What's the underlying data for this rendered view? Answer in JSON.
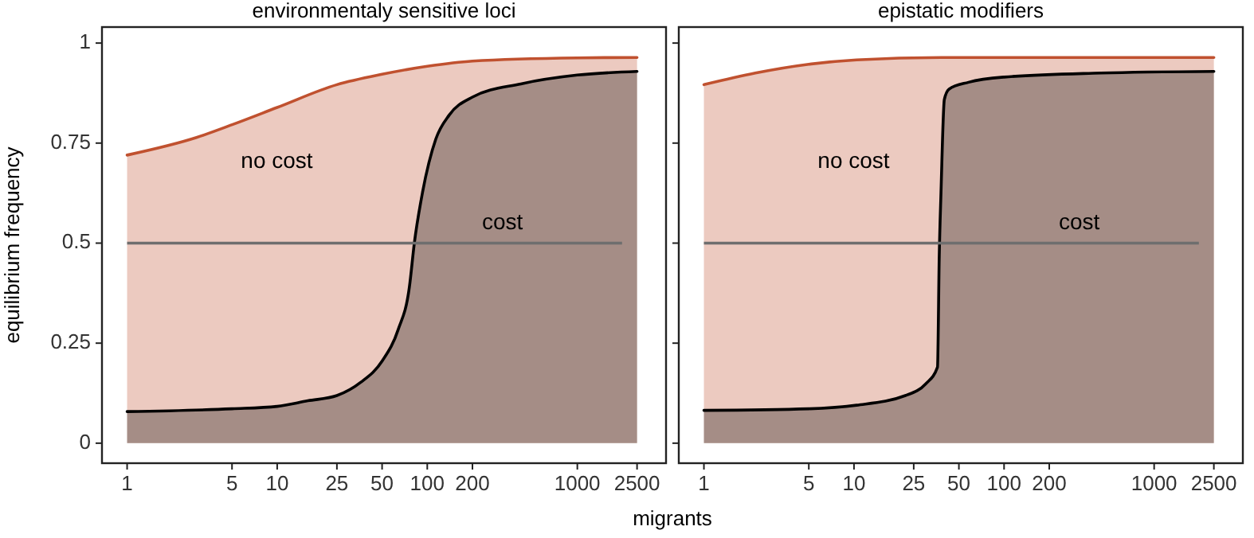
{
  "chart_data": [
    {
      "type": "area",
      "title": "environmentaly sensitive loci",
      "xlabel": "migrants",
      "ylabel": "equilibrium frequency",
      "log": "x",
      "xlim": [
        0.68,
        3900
      ],
      "xticks": [
        1,
        5,
        10,
        25,
        50,
        100,
        200,
        1000,
        2500
      ],
      "ylim": [
        -0.05,
        1.04
      ],
      "yticks": [
        0,
        0.25,
        0.5,
        0.75,
        1
      ],
      "grid": false,
      "series": [
        {
          "name": "no cost",
          "color": "#c0512f",
          "x": [
            1,
            2.9,
            5.1,
            10,
            25,
            50,
            100,
            200,
            1000,
            2500
          ],
          "values": [
            0.72,
            0.764,
            0.797,
            0.839,
            0.896,
            0.922,
            0.942,
            0.955,
            0.963,
            0.964
          ]
        },
        {
          "name": "cost",
          "color": "#000000",
          "x": [
            1,
            5,
            10,
            16,
            25,
            36,
            50,
            64,
            76,
            82,
            93,
            114,
            140,
            200,
            420,
            1000,
            2500
          ],
          "values": [
            0.079,
            0.086,
            0.092,
            0.106,
            0.119,
            0.152,
            0.205,
            0.284,
            0.39,
            0.5,
            0.627,
            0.76,
            0.82,
            0.865,
            0.898,
            0.92,
            0.929
          ]
        }
      ],
      "ref_lines": [
        {
          "axis": "y",
          "value": 0.5,
          "color": "#6e6e6e"
        }
      ]
    },
    {
      "type": "area",
      "title": "epistatic modifiers",
      "log": "x",
      "xlim": [
        0.68,
        3900
      ],
      "xticks": [
        1,
        5,
        10,
        25,
        50,
        100,
        200,
        1000,
        2500
      ],
      "ylim": [
        -0.05,
        1.04
      ],
      "yticks": [
        0,
        0.25,
        0.5,
        0.75,
        1
      ],
      "tick_labels": "x",
      "grid": false,
      "series": [
        {
          "name": "no cost",
          "color": "#c0512f",
          "x": [
            1,
            2.2,
            5,
            10.4,
            38,
            2500
          ],
          "values": [
            0.896,
            0.925,
            0.947,
            0.958,
            0.964,
            0.964
          ]
        },
        {
          "name": "cost",
          "color": "#000000",
          "x": [
            1,
            5,
            10.4,
            22,
            30,
            36,
            37,
            38,
            40,
            43,
            58,
            100,
            440,
            2500
          ],
          "values": [
            0.082,
            0.086,
            0.095,
            0.119,
            0.148,
            0.19,
            0.47,
            0.627,
            0.859,
            0.885,
            0.902,
            0.915,
            0.925,
            0.929
          ]
        }
      ],
      "ref_lines": [
        {
          "axis": "y",
          "value": 0.5,
          "color": "#6e6e6e"
        }
      ]
    }
  ]
}
